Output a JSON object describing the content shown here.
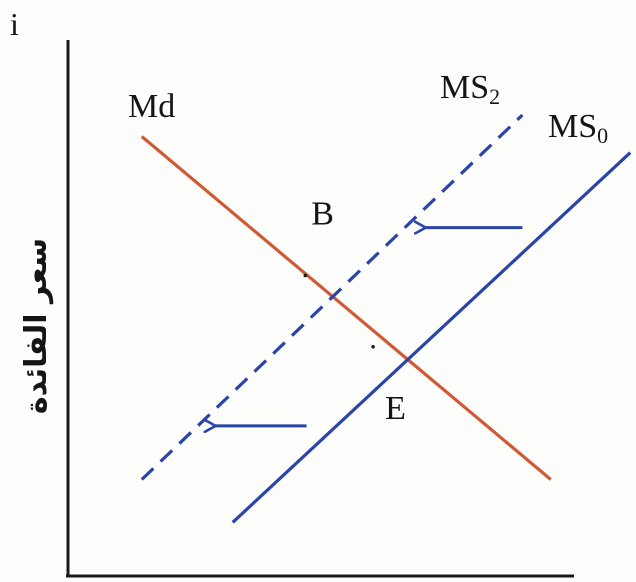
{
  "chart_data": {
    "type": "line",
    "axis_label_y": "i",
    "y_axis_title": "سعر الفائدة",
    "xlim": [
      0,
      100
    ],
    "ylim": [
      0,
      100
    ],
    "grid": false,
    "ticks": false,
    "colors": {
      "demand": "#d05a36",
      "supply": "#2a44a8",
      "axes": "#1a1a1a"
    },
    "series": [
      {
        "name": "Md",
        "label_main": "Md",
        "label_sub": "",
        "style": "solid",
        "color": "#d05a36",
        "points": [
          [
            13,
            82
          ],
          [
            85,
            18
          ]
        ]
      },
      {
        "name": "MS0",
        "label_main": "MS",
        "label_sub": "0",
        "style": "solid",
        "color": "#2a44a8",
        "points": [
          [
            29,
            10
          ],
          [
            99,
            79
          ]
        ]
      },
      {
        "name": "MS2",
        "label_main": "MS",
        "label_sub": "2",
        "style": "dashed",
        "color": "#2a44a8",
        "points": [
          [
            13,
            18
          ],
          [
            80,
            86
          ]
        ]
      }
    ],
    "points": [
      {
        "label": "B",
        "x": 46,
        "y": 57
      },
      {
        "label": "E",
        "x": 59,
        "y": 45
      }
    ],
    "arrows": [
      {
        "from": [
          80,
          65
        ],
        "to": [
          63,
          65
        ],
        "color": "#2a44a8"
      },
      {
        "from": [
          42,
          28
        ],
        "to": [
          26,
          28
        ],
        "color": "#2a44a8"
      }
    ]
  }
}
